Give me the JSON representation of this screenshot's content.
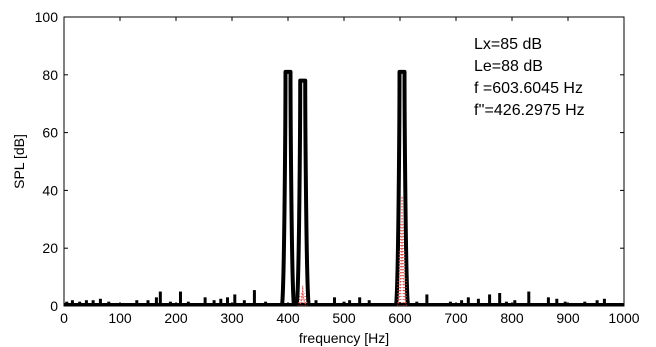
{
  "chart_data": {
    "type": "line",
    "xlabel": "frequency [Hz]",
    "ylabel": "SPL [dB]",
    "xlim": [
      0,
      1000
    ],
    "ylim": [
      0,
      100
    ],
    "xticks": [
      0,
      100,
      200,
      300,
      400,
      500,
      600,
      700,
      800,
      900,
      1000
    ],
    "yticks": [
      0,
      20,
      40,
      60,
      80,
      100
    ],
    "grid": false,
    "annotations": [
      "Lx=85 dB",
      "Le=88 dB",
      "f =603.6045 Hz",
      "f''=426.2975 Hz"
    ],
    "series": [
      {
        "color": "#000000",
        "style": "solid-thick",
        "peaks": [
          {
            "x": 400,
            "y": 81
          },
          {
            "x": 426.3,
            "y": 78
          },
          {
            "x": 603.6,
            "y": 81
          }
        ],
        "noise_spikes": [
          {
            "x": 5,
            "y": 1.5
          },
          {
            "x": 15,
            "y": 2
          },
          {
            "x": 28,
            "y": 1.5
          },
          {
            "x": 40,
            "y": 2
          },
          {
            "x": 52,
            "y": 2
          },
          {
            "x": 65,
            "y": 2.5
          },
          {
            "x": 80,
            "y": 1.5
          },
          {
            "x": 95,
            "y": 1
          },
          {
            "x": 115,
            "y": 1
          },
          {
            "x": 130,
            "y": 2
          },
          {
            "x": 150,
            "y": 2
          },
          {
            "x": 165,
            "y": 3
          },
          {
            "x": 172,
            "y": 5
          },
          {
            "x": 190,
            "y": 1.5
          },
          {
            "x": 208,
            "y": 5
          },
          {
            "x": 222,
            "y": 1.5
          },
          {
            "x": 240,
            "y": 1
          },
          {
            "x": 252,
            "y": 3
          },
          {
            "x": 268,
            "y": 2
          },
          {
            "x": 280,
            "y": 2.5
          },
          {
            "x": 292,
            "y": 3
          },
          {
            "x": 305,
            "y": 4
          },
          {
            "x": 322,
            "y": 2
          },
          {
            "x": 340,
            "y": 5.5
          },
          {
            "x": 360,
            "y": 1.5
          },
          {
            "x": 378,
            "y": 1
          },
          {
            "x": 450,
            "y": 2
          },
          {
            "x": 470,
            "y": 1
          },
          {
            "x": 483,
            "y": 3
          },
          {
            "x": 500,
            "y": 1.5
          },
          {
            "x": 510,
            "y": 2
          },
          {
            "x": 528,
            "y": 3
          },
          {
            "x": 545,
            "y": 2
          },
          {
            "x": 560,
            "y": 1
          },
          {
            "x": 630,
            "y": 1.5
          },
          {
            "x": 648,
            "y": 4
          },
          {
            "x": 665,
            "y": 1
          },
          {
            "x": 690,
            "y": 1.5
          },
          {
            "x": 710,
            "y": 2
          },
          {
            "x": 722,
            "y": 3
          },
          {
            "x": 740,
            "y": 2.5
          },
          {
            "x": 760,
            "y": 4
          },
          {
            "x": 778,
            "y": 4.5
          },
          {
            "x": 790,
            "y": 1.5
          },
          {
            "x": 805,
            "y": 2
          },
          {
            "x": 830,
            "y": 5
          },
          {
            "x": 850,
            "y": 1
          },
          {
            "x": 865,
            "y": 3
          },
          {
            "x": 880,
            "y": 2.5
          },
          {
            "x": 895,
            "y": 1.5
          },
          {
            "x": 910,
            "y": 1
          },
          {
            "x": 930,
            "y": 1.5
          },
          {
            "x": 952,
            "y": 2
          },
          {
            "x": 965,
            "y": 2.5
          },
          {
            "x": 985,
            "y": 1
          }
        ]
      },
      {
        "color": "#d9534f",
        "style": "dotted",
        "peaks": [
          {
            "x": 426.3,
            "y": 7
          },
          {
            "x": 603.6,
            "y": 38
          }
        ]
      }
    ]
  }
}
